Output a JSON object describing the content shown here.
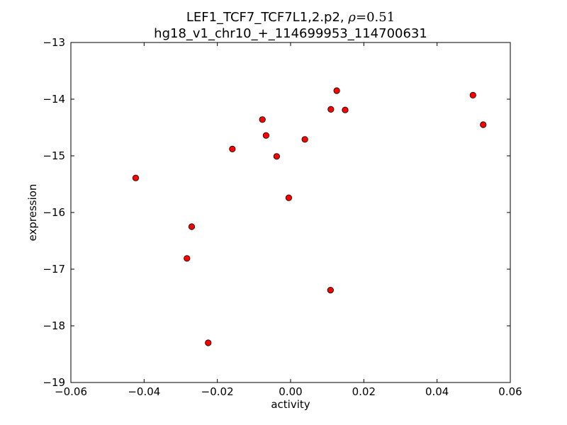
{
  "chart_data": {
    "type": "scatter",
    "title_line1_prefix": "LEF1_TCF7_TCF7L1,2.p2, ",
    "title_line1_rho": "ρ",
    "title_line1_eq": "=",
    "title_line1_value": "0.51",
    "title_line2": "hg18_v1_chr10_+_114699953_114700631",
    "xlabel": "activity",
    "ylabel": "expression",
    "xlim": [
      -0.06,
      0.06
    ],
    "ylim": [
      -19,
      -13
    ],
    "xticks": [
      -0.06,
      -0.04,
      -0.02,
      0.0,
      0.02,
      0.04,
      0.06
    ],
    "xtick_labels": [
      "−0.06",
      "−0.04",
      "−0.02",
      "0.00",
      "0.02",
      "0.04",
      "0.06"
    ],
    "yticks": [
      -13,
      -14,
      -15,
      -16,
      -17,
      -18,
      -19
    ],
    "ytick_labels": [
      "−13",
      "−14",
      "−15",
      "−16",
      "−17",
      "−18",
      "−19"
    ],
    "grid": false,
    "marker_color": "#ff0000",
    "marker_edge_color": "#000000",
    "points": [
      {
        "x": -0.0423,
        "y": -15.39
      },
      {
        "x": -0.0283,
        "y": -16.81
      },
      {
        "x": -0.027,
        "y": -16.25
      },
      {
        "x": -0.0225,
        "y": -18.3
      },
      {
        "x": -0.0159,
        "y": -14.88
      },
      {
        "x": -0.0077,
        "y": -14.36
      },
      {
        "x": -0.0067,
        "y": -14.64
      },
      {
        "x": -0.0038,
        "y": -15.01
      },
      {
        "x": -0.0005,
        "y": -15.74
      },
      {
        "x": 0.0039,
        "y": -14.71
      },
      {
        "x": 0.011,
        "y": -14.18
      },
      {
        "x": 0.0109,
        "y": -17.37
      },
      {
        "x": 0.0126,
        "y": -13.85
      },
      {
        "x": 0.0149,
        "y": -14.19
      },
      {
        "x": 0.0498,
        "y": -13.93
      },
      {
        "x": 0.0526,
        "y": -14.45
      }
    ]
  }
}
